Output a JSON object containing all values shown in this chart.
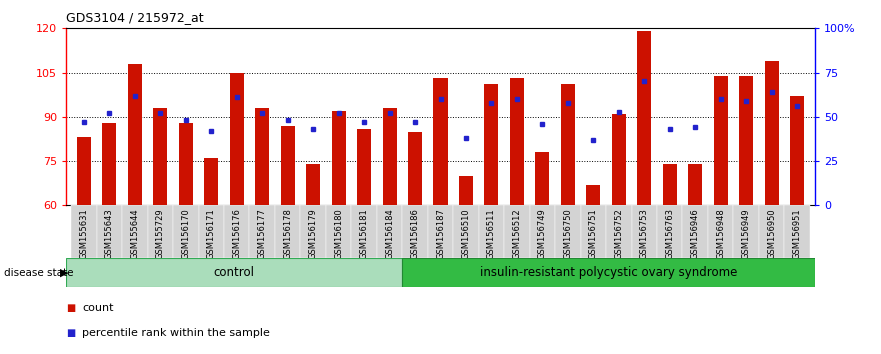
{
  "title": "GDS3104 / 215972_at",
  "samples": [
    "GSM155631",
    "GSM155643",
    "GSM155644",
    "GSM155729",
    "GSM156170",
    "GSM156171",
    "GSM156176",
    "GSM156177",
    "GSM156178",
    "GSM156179",
    "GSM156180",
    "GSM156181",
    "GSM156184",
    "GSM156186",
    "GSM156187",
    "GSM156510",
    "GSM156511",
    "GSM156512",
    "GSM156749",
    "GSM156750",
    "GSM156751",
    "GSM156752",
    "GSM156753",
    "GSM156763",
    "GSM156946",
    "GSM156948",
    "GSM156949",
    "GSM156950",
    "GSM156951"
  ],
  "bar_heights": [
    83,
    88,
    108,
    93,
    88,
    76,
    105,
    93,
    87,
    74,
    92,
    86,
    93,
    85,
    103,
    70,
    101,
    103,
    78,
    101,
    67,
    91,
    119,
    74,
    74,
    104,
    104,
    109,
    97
  ],
  "percentile_ranks": [
    47,
    52,
    62,
    52,
    48,
    42,
    61,
    52,
    48,
    43,
    52,
    47,
    52,
    47,
    60,
    38,
    58,
    60,
    46,
    58,
    37,
    53,
    70,
    43,
    44,
    60,
    59,
    64,
    56
  ],
  "control_count": 13,
  "ylim_left": [
    60,
    120
  ],
  "ylim_right": [
    0,
    100
  ],
  "yticks_left": [
    60,
    75,
    90,
    105,
    120
  ],
  "yticks_right": [
    0,
    25,
    50,
    75,
    100
  ],
  "ytick_right_labels": [
    "0",
    "25",
    "50",
    "75",
    "100%"
  ],
  "bar_color": "#CC1100",
  "dot_color": "#2222CC",
  "control_label": "control",
  "disease_label": "insulin-resistant polycystic ovary syndrome",
  "legend_bar": "count",
  "legend_dot": "percentile rank within the sample",
  "control_group_color": "#AAEEBB",
  "disease_group_color": "#44CC44",
  "control_count_samples": 13,
  "bar_width": 0.55
}
